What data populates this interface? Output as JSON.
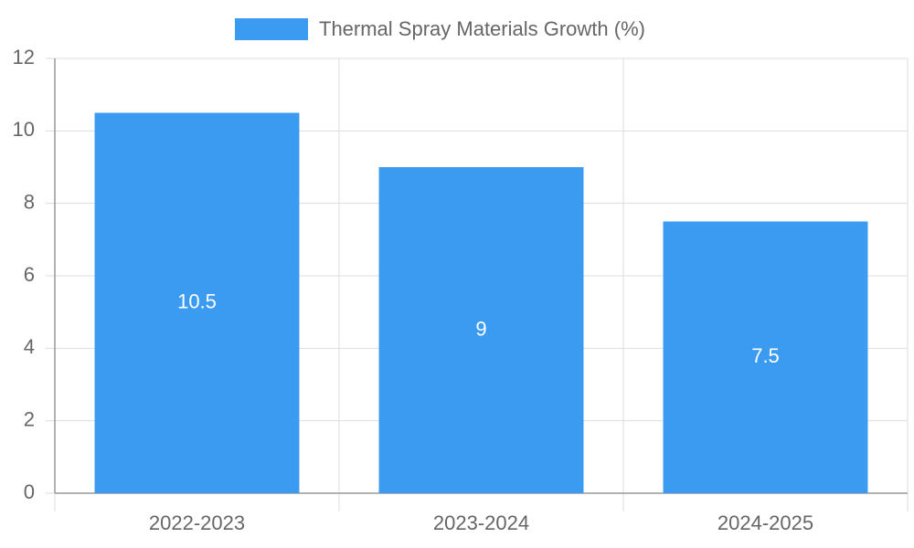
{
  "chart_data": {
    "type": "bar",
    "categories": [
      "2022-2023",
      "2023-2024",
      "2024-2025"
    ],
    "series": [
      {
        "name": "Thermal Spray Materials Growth (%)",
        "values": [
          10.5,
          9,
          7.5
        ],
        "color": "#3a9bf0"
      }
    ],
    "data_labels": [
      "10.5",
      "9",
      "7.5"
    ],
    "y_ticks": [
      "0",
      "2",
      "4",
      "6",
      "8",
      "10",
      "12"
    ],
    "ylim": [
      0,
      12
    ],
    "grid": true,
    "legend_position": "top-center"
  }
}
